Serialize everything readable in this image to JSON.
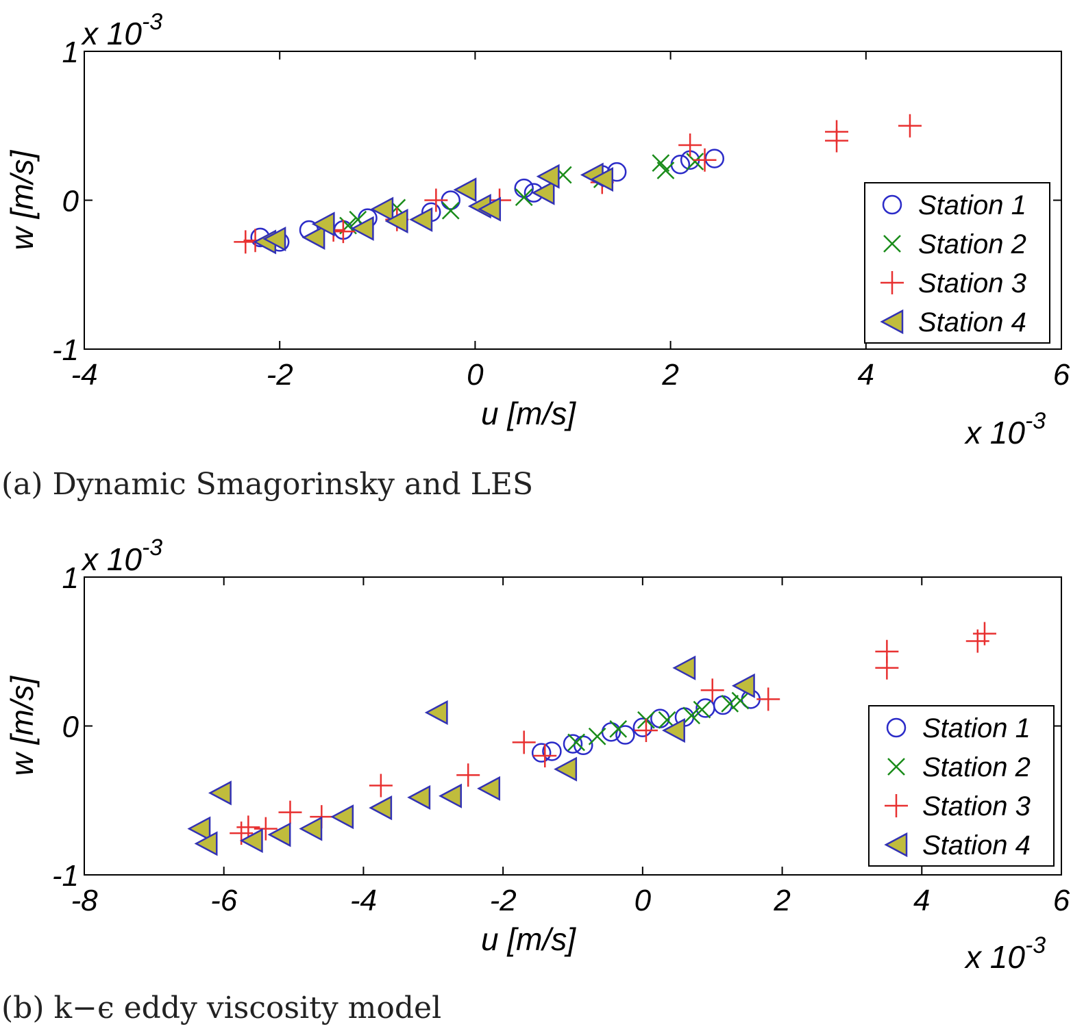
{
  "chart_data": [
    {
      "type": "scatter",
      "caption": "(a) Dynamic Smagorinsky and LES",
      "xlabel": "u [m/s]",
      "ylabel": "w [m/s]",
      "x_multiplier": "x 10^-3",
      "y_multiplier": "x 10^-3",
      "xlim": [
        -4,
        6
      ],
      "ylim": [
        -1,
        1
      ],
      "xticks": [
        "-4",
        "-2",
        "0",
        "2",
        "4",
        "6"
      ],
      "yticks": [
        "-1",
        "0",
        "1"
      ],
      "legend_position": "right",
      "series": [
        {
          "name": "Station 1",
          "marker": "circle",
          "color": "#2b2bc8",
          "x": [
            -2.2,
            -2.0,
            -1.7,
            -1.35,
            -1.1,
            -0.45,
            -0.25,
            0.5,
            0.6,
            1.3,
            1.45,
            2.1,
            2.2,
            2.45
          ],
          "y": [
            -0.25,
            -0.28,
            -0.2,
            -0.2,
            -0.12,
            -0.08,
            0.0,
            0.08,
            0.05,
            0.17,
            0.19,
            0.24,
            0.27,
            0.28
          ]
        },
        {
          "name": "Station 2",
          "marker": "x",
          "color": "#1a8c1a",
          "x": [
            -1.3,
            -1.2,
            -0.8,
            -0.25,
            0.5,
            0.9,
            1.3,
            1.9,
            1.95,
            2.25
          ],
          "y": [
            -0.17,
            -0.13,
            -0.05,
            -0.07,
            0.02,
            0.17,
            0.14,
            0.25,
            0.2,
            0.26
          ]
        },
        {
          "name": "Station 3",
          "marker": "plus",
          "color": "#e83030",
          "x": [
            -2.35,
            -2.25,
            -1.45,
            -1.35,
            -0.8,
            -0.4,
            0.25,
            1.3,
            2.2,
            2.35,
            3.7,
            3.7,
            4.45
          ],
          "y": [
            -0.28,
            -0.27,
            -0.2,
            -0.21,
            -0.13,
            0.0,
            0.0,
            0.12,
            0.37,
            0.27,
            0.46,
            0.4,
            0.5
          ]
        },
        {
          "name": "Station 4",
          "marker": "triangle-left",
          "color": "#3232b4",
          "fill": "#c0bc3c",
          "x": [
            -2.15,
            -2.05,
            -1.65,
            -1.55,
            -1.15,
            -0.95,
            -0.8,
            -0.55,
            -0.1,
            0.05,
            0.15,
            0.7,
            0.75,
            1.2,
            1.3
          ],
          "y": [
            -0.28,
            -0.26,
            -0.25,
            -0.16,
            -0.19,
            -0.06,
            -0.14,
            -0.13,
            0.07,
            -0.04,
            -0.06,
            0.05,
            0.16,
            0.17,
            0.14
          ]
        }
      ]
    },
    {
      "type": "scatter",
      "caption": "(b) k−ϵ eddy viscosity model",
      "xlabel": "u [m/s]",
      "ylabel": "w [m/s]",
      "x_multiplier": "x 10^-3",
      "y_multiplier": "x 10^-3",
      "xlim": [
        -8,
        6
      ],
      "ylim": [
        -1,
        1
      ],
      "xticks": [
        "-8",
        "-6",
        "-4",
        "-2",
        "0",
        "2",
        "4",
        "6"
      ],
      "yticks": [
        "-1",
        "0",
        "1"
      ],
      "legend_position": "right",
      "series": [
        {
          "name": "Station 1",
          "marker": "circle",
          "color": "#2b2bc8",
          "x": [
            -1.45,
            -1.3,
            -1.0,
            -0.85,
            -0.45,
            -0.25,
            0.0,
            0.25,
            0.6,
            0.9,
            1.15,
            1.55
          ],
          "y": [
            -0.18,
            -0.17,
            -0.12,
            -0.13,
            -0.04,
            -0.06,
            -0.01,
            0.05,
            0.06,
            0.12,
            0.14,
            0.18
          ]
        },
        {
          "name": "Station 2",
          "marker": "x",
          "color": "#1a8c1a",
          "x": [
            -0.95,
            -0.65,
            -0.35,
            0.05,
            0.35,
            0.7,
            0.85,
            1.25,
            1.4
          ],
          "y": [
            -0.11,
            -0.07,
            -0.02,
            0.04,
            0.04,
            0.07,
            0.11,
            0.15,
            0.17
          ]
        },
        {
          "name": "Station 3",
          "marker": "plus",
          "color": "#e83030",
          "x": [
            -5.75,
            -5.65,
            -5.4,
            -5.05,
            -4.6,
            -3.75,
            -2.5,
            -1.7,
            -1.4,
            0.05,
            1.0,
            1.8,
            3.5,
            3.5,
            4.8,
            4.9
          ],
          "y": [
            -0.72,
            -0.68,
            -0.69,
            -0.58,
            -0.61,
            -0.4,
            -0.33,
            -0.11,
            -0.2,
            -0.03,
            0.24,
            0.18,
            0.5,
            0.39,
            0.57,
            0.62
          ]
        },
        {
          "name": "Station 4",
          "marker": "triangle-left",
          "color": "#3232b4",
          "fill": "#c0bc3c",
          "x": [
            -6.35,
            -6.25,
            -6.05,
            -5.6,
            -5.2,
            -4.75,
            -4.3,
            -3.75,
            -3.2,
            -2.75,
            -2.2,
            -1.1,
            -2.95,
            0.45,
            0.6,
            1.45
          ],
          "y": [
            -0.69,
            -0.79,
            -0.45,
            -0.77,
            -0.73,
            -0.69,
            -0.61,
            -0.55,
            -0.48,
            -0.47,
            -0.42,
            -0.29,
            0.09,
            -0.03,
            0.39,
            0.27
          ]
        }
      ]
    }
  ]
}
